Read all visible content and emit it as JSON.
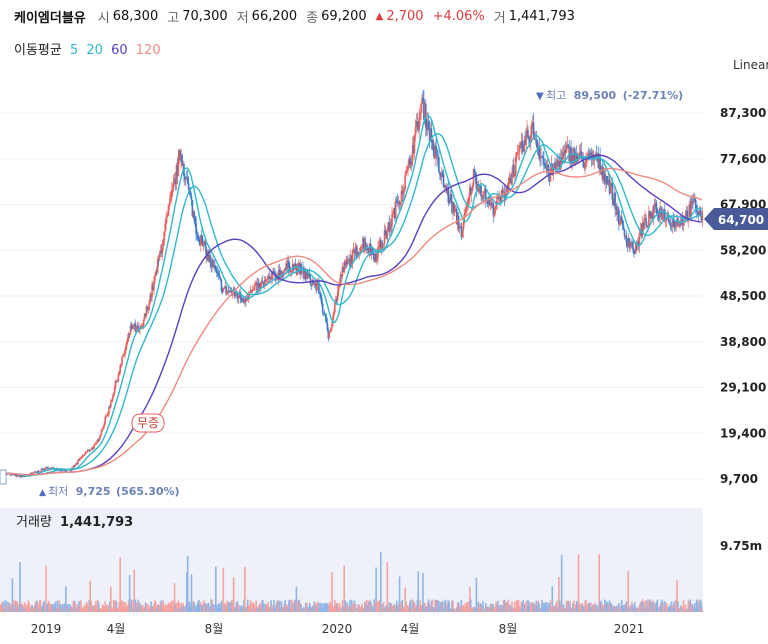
{
  "header": {
    "name": "케이엠더블유",
    "open_label": "시",
    "open": "68,300",
    "high_label": "고",
    "high": "70,300",
    "low_label": "저",
    "low": "66,200",
    "close_label": "종",
    "close": "69,200",
    "change": "2,700",
    "change_pct": "+4.06%",
    "volume_label": "거",
    "volume": "1,441,793"
  },
  "ma_legend": {
    "title": "이동평균",
    "periods": [
      {
        "label": "5",
        "color": "#2fb8cc"
      },
      {
        "label": "20",
        "color": "#2fb8cc"
      },
      {
        "label": "60",
        "color": "#5b3fbf"
      },
      {
        "label": "120",
        "color": "#f08a80"
      }
    ]
  },
  "scale_mode": "Linear",
  "colors": {
    "up": "#e8605c",
    "down": "#3a78c8",
    "ma5": "#2fb8cc",
    "ma20": "#2fb8cc",
    "ma60": "#5b3fbf",
    "ma120": "#f08a80",
    "price_tag": "#4a5a99",
    "vol_bg": "#eef1f9"
  },
  "chart_data": {
    "type": "candlestick",
    "y_ticks": [
      "87,300",
      "77,600",
      "67,900",
      "58,200",
      "48,500",
      "38,800",
      "29,100",
      "19,400",
      "9,700"
    ],
    "y_tick_values": [
      87300,
      77600,
      67900,
      58200,
      48500,
      38800,
      29100,
      19400,
      9700
    ],
    "ylim": [
      5500,
      96000
    ],
    "x_labels": [
      "2019",
      "4월",
      "8월",
      "2020",
      "4월",
      "8월",
      "2021"
    ],
    "current_price": "64,700",
    "high_annotation": {
      "label": "최고",
      "value": "89,500",
      "pct": "(-27.71%)"
    },
    "low_annotation": {
      "label": "최저",
      "value": "9,725",
      "pct": "(565.30%)"
    },
    "event_marker": "무증",
    "volume_axis_tick": "9.75m",
    "anchors_x_index": [
      0,
      50,
      100,
      150,
      180,
      205,
      230,
      280,
      300,
      330,
      385,
      420,
      475,
      520,
      545,
      620,
      640,
      680,
      700,
      730,
      775,
      800,
      825,
      840,
      870,
      900,
      940,
      985,
      1010,
      1050,
      1075,
      1105,
      1135,
      1170,
      1210,
      1250,
      1270,
      1300,
      1330,
      1355,
      1370,
      1400,
      1440,
      1460,
      1480,
      1500
    ],
    "anchors_close": [
      11000,
      10200,
      12000,
      11500,
      15000,
      17000,
      24000,
      42000,
      41000,
      52000,
      79000,
      62000,
      50000,
      48000,
      50000,
      55000,
      54000,
      50000,
      40000,
      54000,
      60000,
      57000,
      62000,
      66000,
      75000,
      89500,
      74000,
      62000,
      74000,
      67000,
      70000,
      78000,
      84000,
      74000,
      79000,
      77000,
      78000,
      72000,
      62000,
      58000,
      63000,
      67000,
      64000,
      65000,
      68000,
      64700
    ]
  }
}
